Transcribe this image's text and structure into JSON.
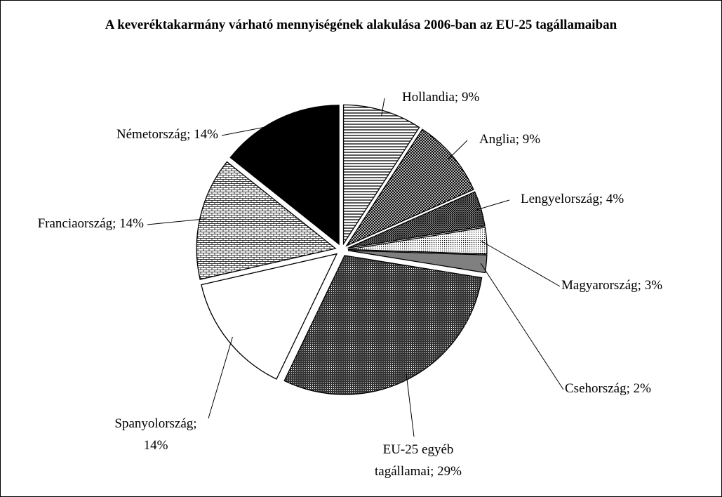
{
  "chart_data": {
    "type": "pie",
    "title": "A keveréktakarmány várható mennyiségének alakulása 2006-ban az EU-25 tagállamaiban",
    "value_labels": [
      "Hollandia; 9%",
      "Anglia; 9%",
      "Lengyelország; 4%",
      "Magyarország; 3%",
      "Csehország; 2%",
      "EU-25 egyéb\ntagállamai; 29%",
      "Spanyolország;\n14%",
      "Franciaország; 14%",
      "Németország; 14%"
    ],
    "values": [
      9,
      9,
      4,
      3,
      2,
      29,
      14,
      14,
      14
    ],
    "fills": [
      "url(#p-hlines)",
      "url(#p-cross)",
      "url(#p-cross2)",
      "url(#p-dots)",
      "#808080",
      "url(#p-dense)",
      "#ffffff",
      "url(#p-brick)",
      "#000000"
    ]
  }
}
